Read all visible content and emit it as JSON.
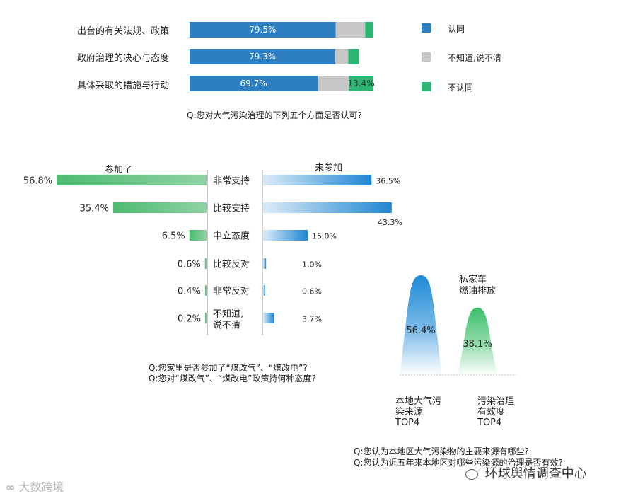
{
  "chart_data": [
    {
      "type": "bar",
      "stacked": true,
      "orientation": "horizontal",
      "categories": [
        "出台的有关法规、政策",
        "政府治理的决心与态度",
        "具体采取的措施与行动"
      ],
      "series": [
        {
          "name": "认同",
          "values": [
            79.5,
            79.3,
            69.7
          ],
          "labels": [
            "79.5%",
            "79.3%",
            "69.7%"
          ]
        },
        {
          "name": "不知道,说不清",
          "values": [
            16.0,
            7.0,
            16.9
          ]
        },
        {
          "name": "不认同",
          "values": [
            4.5,
            6.0,
            13.4
          ],
          "labels": [
            "",
            "",
            "13.4%"
          ]
        }
      ],
      "question": "Q:您对大气污染治理的下列五个方面是否认可?",
      "colors": {
        "agree": "#2e7fc1",
        "unsure": "#c7c7c7",
        "disagree": "#2bb673"
      }
    },
    {
      "type": "bar",
      "orientation": "horizontal",
      "diverging": true,
      "categories": [
        "非常支持",
        "比较支持",
        "中立态度",
        "比较反对",
        "非常反对",
        "不知道,\n说不清"
      ],
      "series": [
        {
          "name": "参加了",
          "values": [
            56.8,
            35.4,
            6.5,
            0.6,
            0.4,
            0.2
          ],
          "labels": [
            "56.8%",
            "35.4%",
            "6.5%",
            "0.6%",
            "0.4%",
            "0.2%"
          ]
        },
        {
          "name": "未参加",
          "values": [
            36.5,
            43.3,
            15.0,
            1.0,
            0.6,
            3.7
          ],
          "labels": [
            "36.5%",
            "43.3%",
            "15.0%",
            "1.0%",
            "0.6%",
            "3.7%"
          ]
        }
      ],
      "questions": [
        "Q:您家里是否参加了“煤改气”、“煤改电”?",
        "Q:您对“煤改气”、“煤改电”政策持何种态度?"
      ],
      "colors": {
        "joined": "#5fbf7f",
        "not_joined": "#2f8fd6"
      }
    },
    {
      "type": "bar",
      "shape": "peak",
      "categories": [
        "本地大气污\n染来源\nTOP4",
        "污染治理\n有效度\nTOP4"
      ],
      "values": [
        56.4,
        38.1
      ],
      "labels": [
        "56.4%",
        "38.1%"
      ],
      "peak_label": "私家车\n燃油排放",
      "questions": [
        "Q:您认为本地区大气污染物的主要来源有哪些?",
        "Q:您认为近五年来本地区对哪些污染源的治理是否有效?"
      ],
      "colors": {
        "source": "#1e8ad6",
        "effectiveness": "#3cbf6a"
      }
    }
  ],
  "watermark": {
    "left": "大数跨境",
    "right": "环球舆情调查中心"
  }
}
